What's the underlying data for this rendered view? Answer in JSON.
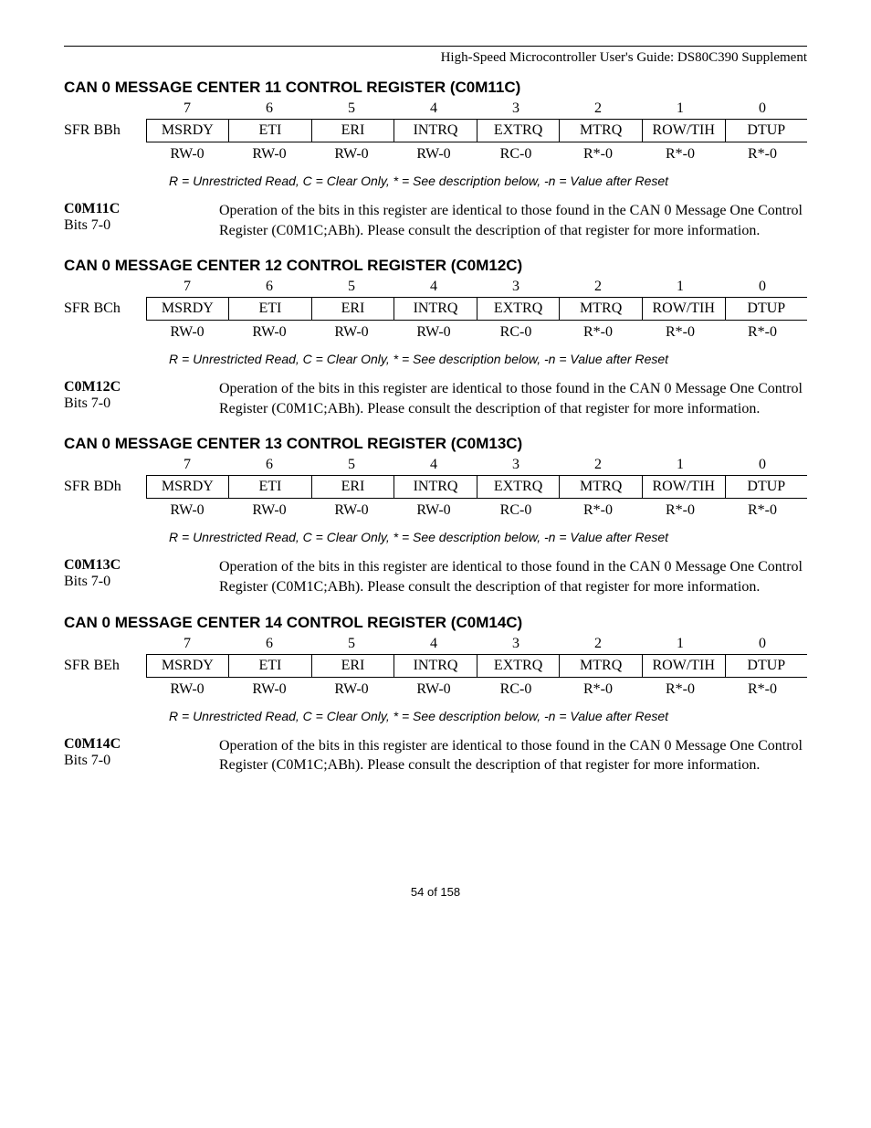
{
  "header": "High-Speed Microcontroller User's Guide: DS80C390 Supplement",
  "legend": "R = Unrestricted Read, C = Clear Only, * = See description below, -n = Value after Reset",
  "bit_numbers": [
    "7",
    "6",
    "5",
    "4",
    "3",
    "2",
    "1",
    "0"
  ],
  "bit_names": [
    "MSRDY",
    "ETI",
    "ERI",
    "INTRQ",
    "EXTRQ",
    "MTRQ",
    "ROW/TIH",
    "DTUP"
  ],
  "bit_access": [
    "RW-0",
    "RW-0",
    "RW-0",
    "RW-0",
    "RC-0",
    "R*-0",
    "R*-0",
    "R*-0"
  ],
  "sections": [
    {
      "title": "CAN 0 MESSAGE CENTER 11 CONTROL REGISTER (C0M11C)",
      "sfr": "SFR BBh",
      "regname": "C0M11C",
      "bits": "Bits 7-0",
      "desc": "Operation of the bits in this register are identical to those found in the CAN 0 Message One Control Register (C0M1C;ABh). Please consult the description of that register for more information."
    },
    {
      "title": "CAN 0 MESSAGE CENTER 12 CONTROL REGISTER (C0M12C)",
      "sfr": "SFR BCh",
      "regname": "C0M12C",
      "bits": "Bits 7-0",
      "desc": "Operation of the bits in this register are identical to those found in the CAN 0 Message One Control Register (C0M1C;ABh). Please consult the description of that register for more information."
    },
    {
      "title": "CAN 0 MESSAGE CENTER 13 CONTROL REGISTER (C0M13C)",
      "sfr": "SFR BDh",
      "regname": "C0M13C",
      "bits": "Bits 7-0",
      "desc": "Operation of the bits in this register are identical to those found in the CAN 0 Message One Control Register (C0M1C;ABh). Please consult the description of that register for more information."
    },
    {
      "title": "CAN 0 MESSAGE CENTER 14 CONTROL REGISTER (C0M14C)",
      "sfr": "SFR BEh",
      "regname": "C0M14C",
      "bits": "Bits 7-0",
      "desc": "Operation of the bits in this register are identical to those found in the CAN 0 Message One Control Register (C0M1C;ABh). Please consult the description of that register for more information."
    }
  ],
  "footer": "54 of 158"
}
